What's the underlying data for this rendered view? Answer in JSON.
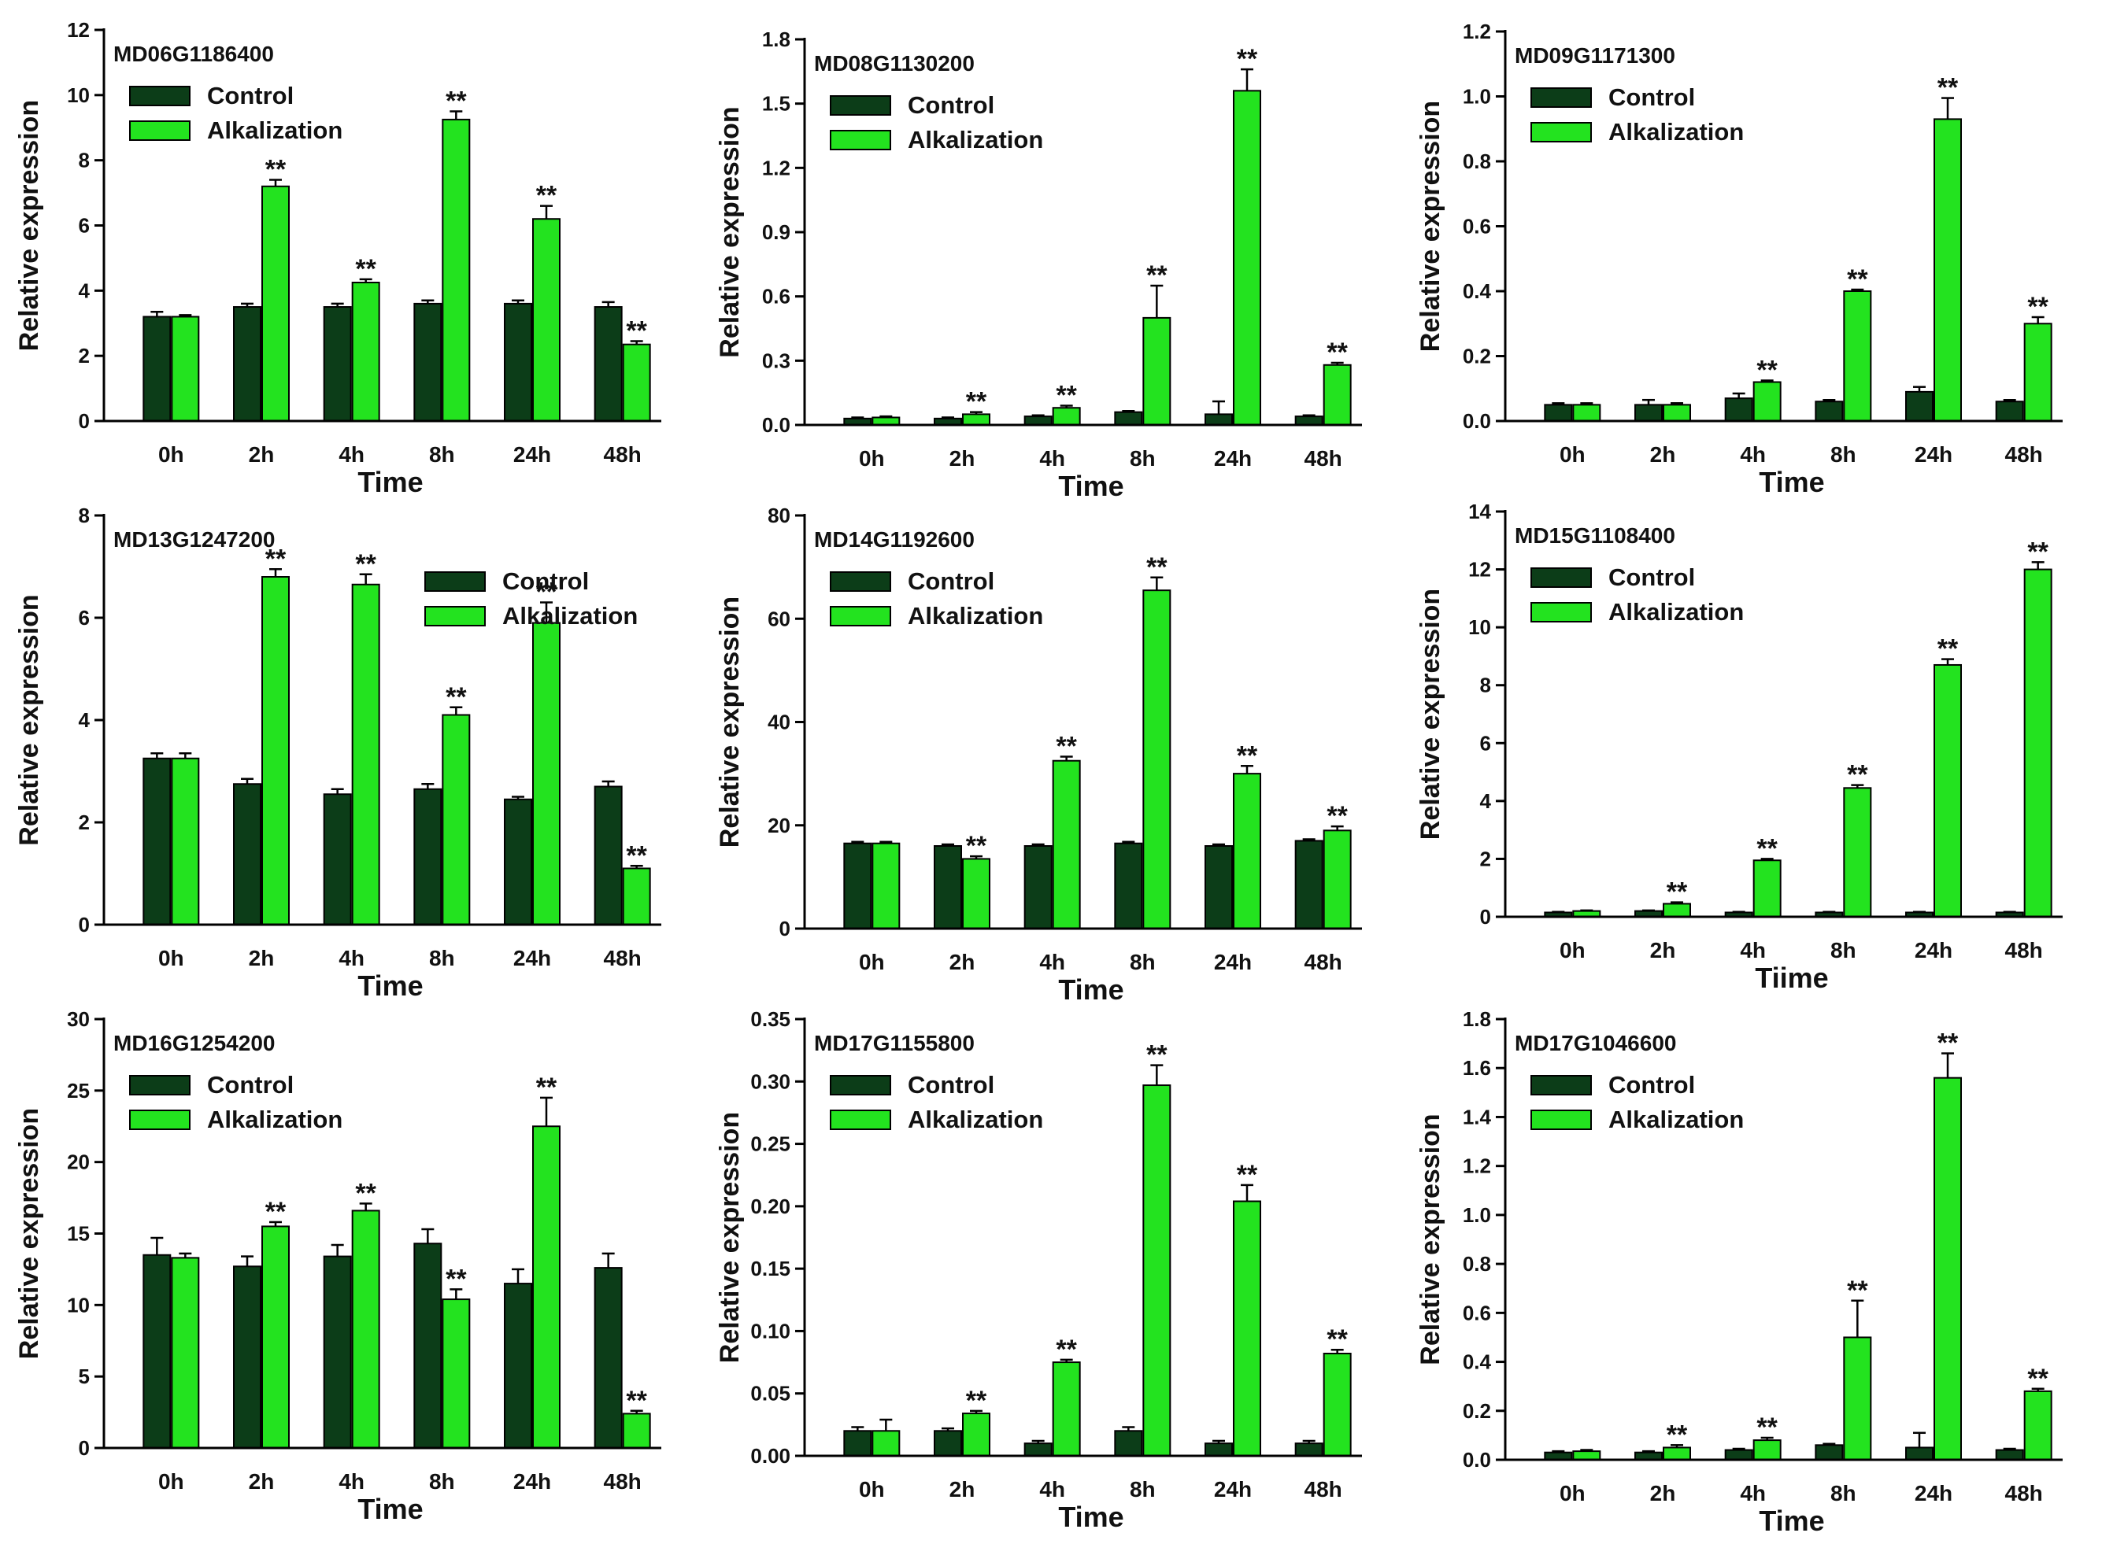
{
  "colors": {
    "control": "#0c3d18",
    "alkalization": "#23e31f",
    "axis": "#000000",
    "background": "#ffffff"
  },
  "chart_data": [
    {
      "type": "bar",
      "title": "MD06G1186400",
      "xlabel": "Time",
      "ylabel": "Relative expression",
      "ylim": [
        0,
        12
      ],
      "yticks": [
        0,
        2,
        4,
        6,
        8,
        10,
        12
      ],
      "categories": [
        "0h",
        "2h",
        "4h",
        "8h",
        "24h",
        "48h"
      ],
      "legend_position": "top-left",
      "series": [
        {
          "name": "Control",
          "values": [
            3.2,
            3.5,
            3.5,
            3.6,
            3.6,
            3.5
          ],
          "errors": [
            0.15,
            0.1,
            0.1,
            0.1,
            0.1,
            0.15
          ]
        },
        {
          "name": "Alkalization",
          "values": [
            3.2,
            7.2,
            4.25,
            9.25,
            6.2,
            2.35
          ],
          "errors": [
            0.05,
            0.2,
            0.1,
            0.25,
            0.4,
            0.1
          ]
        }
      ],
      "significance": [
        null,
        "**",
        "**",
        "**",
        "**",
        "**"
      ]
    },
    {
      "type": "bar",
      "title": "MD08G1130200",
      "xlabel": "Time",
      "ylabel": "Relative expression",
      "ylim": [
        0,
        1.8
      ],
      "yticks": [
        "0.0",
        "0.3",
        "0.6",
        "0.9",
        "1.2",
        "1.5",
        "1.8"
      ],
      "categories": [
        "0h",
        "2h",
        "4h",
        "8h",
        "24h",
        "48h"
      ],
      "legend_position": "top-left",
      "series": [
        {
          "name": "Control",
          "values": [
            0.03,
            0.03,
            0.04,
            0.06,
            0.05,
            0.04
          ],
          "errors": [
            0.005,
            0.005,
            0.005,
            0.005,
            0.06,
            0.005
          ]
        },
        {
          "name": "Alkalization",
          "values": [
            0.035,
            0.05,
            0.08,
            0.5,
            1.56,
            0.28
          ],
          "errors": [
            0.005,
            0.01,
            0.01,
            0.15,
            0.1,
            0.01
          ]
        }
      ],
      "significance": [
        null,
        "**",
        "**",
        "**",
        "**",
        "**"
      ]
    },
    {
      "type": "bar",
      "title": "MD09G1171300",
      "xlabel": "Time",
      "ylabel": "Relative expression",
      "ylim": [
        0,
        1.2
      ],
      "yticks": [
        "0.0",
        "0.2",
        "0.4",
        "0.6",
        "0.8",
        "1.0",
        "1.2"
      ],
      "categories": [
        "0h",
        "2h",
        "4h",
        "8h",
        "24h",
        "48h"
      ],
      "legend_position": "top-left",
      "series": [
        {
          "name": "Control",
          "values": [
            0.05,
            0.05,
            0.07,
            0.06,
            0.09,
            0.06
          ],
          "errors": [
            0.005,
            0.015,
            0.015,
            0.005,
            0.015,
            0.005
          ]
        },
        {
          "name": "Alkalization",
          "values": [
            0.05,
            0.05,
            0.12,
            0.4,
            0.93,
            0.3
          ],
          "errors": [
            0.005,
            0.005,
            0.005,
            0.005,
            0.065,
            0.02
          ]
        }
      ],
      "significance": [
        null,
        null,
        "**",
        "**",
        "**",
        "**"
      ]
    },
    {
      "type": "bar",
      "title": "MD13G1247200",
      "xlabel": "Time",
      "ylabel": "Relative expression",
      "ylim": [
        0,
        8
      ],
      "yticks": [
        0,
        2,
        4,
        6,
        8
      ],
      "categories": [
        "0h",
        "2h",
        "4h",
        "8h",
        "24h",
        "48h"
      ],
      "legend_position": "top-right",
      "series": [
        {
          "name": "Control",
          "values": [
            3.25,
            2.75,
            2.55,
            2.65,
            2.45,
            2.7
          ],
          "errors": [
            0.1,
            0.1,
            0.1,
            0.1,
            0.05,
            0.1
          ]
        },
        {
          "name": "Alkalization",
          "values": [
            3.25,
            6.8,
            6.65,
            4.1,
            5.9,
            1.1
          ],
          "errors": [
            0.1,
            0.15,
            0.2,
            0.15,
            0.4,
            0.05
          ]
        }
      ],
      "significance": [
        null,
        "**",
        "**",
        "**",
        "**",
        "**"
      ]
    },
    {
      "type": "bar",
      "title": "MD14G1192600",
      "xlabel": "Time",
      "ylabel": "Relative expression",
      "ylim": [
        0,
        80
      ],
      "yticks": [
        0,
        20,
        40,
        60,
        80
      ],
      "categories": [
        "0h",
        "2h",
        "4h",
        "8h",
        "24h",
        "48h"
      ],
      "legend_position": "top-left",
      "series": [
        {
          "name": "Control",
          "values": [
            16.5,
            16.0,
            16.0,
            16.5,
            16.0,
            17.0
          ],
          "errors": [
            0.3,
            0.3,
            0.3,
            0.3,
            0.3,
            0.3
          ]
        },
        {
          "name": "Alkalization",
          "values": [
            16.5,
            13.5,
            32.5,
            65.5,
            30.0,
            19.0
          ],
          "errors": [
            0.3,
            0.5,
            0.8,
            2.5,
            1.5,
            0.8
          ]
        }
      ],
      "significance": [
        null,
        "**",
        "**",
        "**",
        "**",
        "**"
      ]
    },
    {
      "type": "bar",
      "title": "MD15G1108400",
      "xlabel": "Tiime",
      "ylabel": "Relative expression",
      "ylim": [
        0,
        14
      ],
      "yticks": [
        0,
        2,
        4,
        6,
        8,
        10,
        12,
        14
      ],
      "categories": [
        "0h",
        "2h",
        "4h",
        "8h",
        "24h",
        "48h"
      ],
      "legend_position": "top-left",
      "series": [
        {
          "name": "Control",
          "values": [
            0.15,
            0.2,
            0.15,
            0.15,
            0.15,
            0.15
          ],
          "errors": [
            0.02,
            0.02,
            0.02,
            0.02,
            0.02,
            0.02
          ]
        },
        {
          "name": "Alkalization",
          "values": [
            0.2,
            0.45,
            1.95,
            4.45,
            8.7,
            12.0
          ],
          "errors": [
            0.02,
            0.05,
            0.05,
            0.1,
            0.2,
            0.25
          ]
        }
      ],
      "significance": [
        null,
        "**",
        "**",
        "**",
        "**",
        "**"
      ]
    },
    {
      "type": "bar",
      "title": "MD16G1254200",
      "xlabel": "Time",
      "ylabel": "Relative expression",
      "ylim": [
        0,
        30
      ],
      "yticks": [
        0,
        5,
        10,
        15,
        20,
        25,
        30
      ],
      "categories": [
        "0h",
        "2h",
        "4h",
        "8h",
        "24h",
        "48h"
      ],
      "legend_position": "top-left",
      "series": [
        {
          "name": "Control",
          "values": [
            13.5,
            12.7,
            13.4,
            14.3,
            11.5,
            12.6
          ],
          "errors": [
            1.2,
            0.7,
            0.8,
            1.0,
            1.0,
            1.0
          ]
        },
        {
          "name": "Alkalization",
          "values": [
            13.3,
            15.5,
            16.6,
            10.4,
            22.5,
            2.4
          ],
          "errors": [
            0.3,
            0.3,
            0.5,
            0.7,
            2.0,
            0.2
          ]
        }
      ],
      "significance": [
        null,
        "**",
        "**",
        "**",
        "**",
        "**"
      ]
    },
    {
      "type": "bar",
      "title": "MD17G1155800",
      "xlabel": "Time",
      "ylabel": "Relative expression",
      "ylim": [
        0,
        0.35
      ],
      "yticks": [
        "0.00",
        "0.05",
        "0.10",
        "0.15",
        "0.20",
        "0.25",
        "0.30",
        "0.35"
      ],
      "categories": [
        "0h",
        "2h",
        "4h",
        "8h",
        "24h",
        "48h"
      ],
      "legend_position": "top-left",
      "series": [
        {
          "name": "Control",
          "values": [
            0.02,
            0.02,
            0.01,
            0.02,
            0.01,
            0.01
          ],
          "errors": [
            0.003,
            0.002,
            0.002,
            0.003,
            0.002,
            0.002
          ]
        },
        {
          "name": "Alkalization",
          "values": [
            0.02,
            0.034,
            0.075,
            0.297,
            0.204,
            0.082
          ],
          "errors": [
            0.009,
            0.002,
            0.002,
            0.016,
            0.013,
            0.003
          ]
        }
      ],
      "significance": [
        null,
        "**",
        "**",
        "**",
        "**",
        "**"
      ]
    },
    {
      "type": "bar",
      "title": "MD17G1046600",
      "xlabel": "Time",
      "ylabel": "Relative expression",
      "ylim": [
        0,
        1.8
      ],
      "yticks": [
        "0.0",
        "0.2",
        "0.4",
        "0.6",
        "0.8",
        "1.0",
        "1.2",
        "1.4",
        "1.6",
        "1.8"
      ],
      "categories": [
        "0h",
        "2h",
        "4h",
        "8h",
        "24h",
        "48h"
      ],
      "legend_position": "top-left",
      "series": [
        {
          "name": "Control",
          "values": [
            0.03,
            0.03,
            0.04,
            0.06,
            0.05,
            0.04
          ],
          "errors": [
            0.005,
            0.005,
            0.005,
            0.005,
            0.06,
            0.005
          ]
        },
        {
          "name": "Alkalization",
          "values": [
            0.035,
            0.05,
            0.08,
            0.5,
            1.56,
            0.28
          ],
          "errors": [
            0.005,
            0.01,
            0.01,
            0.15,
            0.1,
            0.01
          ]
        }
      ],
      "significance": [
        null,
        "**",
        "**",
        "**",
        "**",
        "**"
      ]
    }
  ]
}
